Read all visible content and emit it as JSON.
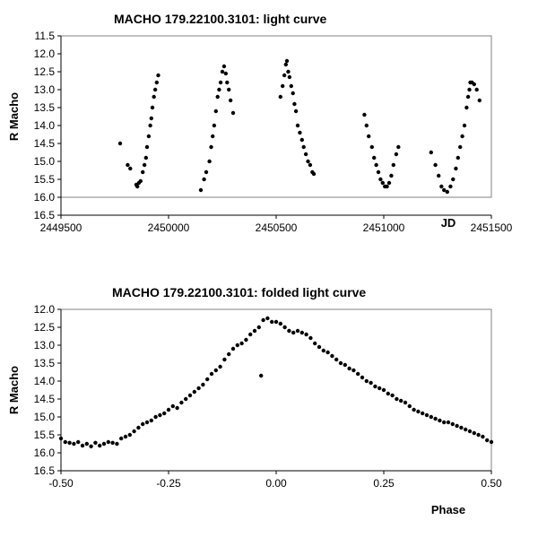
{
  "chart_data": [
    {
      "type": "scatter",
      "title": "MACHO 179.22100.3101: light curve",
      "xlabel": "JD",
      "ylabel": "R Macho",
      "xlim": [
        2449500,
        2451500
      ],
      "ylim": [
        11.5,
        16.0
      ],
      "y_inverted": true,
      "xticks": [
        2449500,
        2450000,
        2450500,
        2451000,
        2451500
      ],
      "xtick_labels": [
        "2449500",
        "2450000",
        "2450500",
        "2451000",
        "2451500"
      ],
      "yticks": [
        11.5,
        12.0,
        12.5,
        13.0,
        13.5,
        14.0,
        14.5,
        15.0,
        15.5,
        16.0,
        16.5
      ],
      "ytick_labels": [
        "11.5",
        "12.0",
        "12.5",
        "13.0",
        "13.5",
        "14.0",
        "14.5",
        "15.0",
        "15.5",
        "16.0",
        "16.5"
      ],
      "grid": false,
      "marker_color": "#000000",
      "series": [
        {
          "segments": [
            [
              [
                2449775,
                14.5
              ],
              [
                2449810,
                15.1
              ],
              [
                2449822,
                15.2
              ],
              [
                2449850,
                15.65
              ],
              [
                2449855,
                15.7
              ],
              [
                2449862,
                15.6
              ],
              [
                2449870,
                15.55
              ],
              [
                2449880,
                15.3
              ],
              [
                2449888,
                15.1
              ],
              [
                2449895,
                14.9
              ],
              [
                2449900,
                14.6
              ],
              [
                2449908,
                14.3
              ],
              [
                2449915,
                14.0
              ],
              [
                2449920,
                13.8
              ],
              [
                2449925,
                13.5
              ],
              [
                2449932,
                13.2
              ],
              [
                2449938,
                13.0
              ],
              [
                2449945,
                12.8
              ],
              [
                2449952,
                12.6
              ]
            ],
            [
              [
                2450150,
                15.8
              ],
              [
                2450165,
                15.5
              ],
              [
                2450175,
                15.3
              ],
              [
                2450190,
                15.0
              ],
              [
                2450198,
                14.6
              ],
              [
                2450205,
                14.3
              ],
              [
                2450212,
                14.0
              ],
              [
                2450220,
                13.6
              ],
              [
                2450228,
                13.2
              ],
              [
                2450235,
                13.0
              ],
              [
                2450242,
                12.8
              ],
              [
                2450250,
                12.5
              ],
              [
                2450258,
                12.35
              ],
              [
                2450266,
                12.55
              ],
              [
                2450272,
                12.8
              ],
              [
                2450280,
                13.0
              ],
              [
                2450288,
                13.3
              ],
              [
                2450300,
                13.65
              ]
            ],
            [
              [
                2450520,
                13.2
              ],
              [
                2450530,
                12.9
              ],
              [
                2450538,
                12.6
              ],
              [
                2450545,
                12.3
              ],
              [
                2450550,
                12.2
              ],
              [
                2450556,
                12.5
              ],
              [
                2450562,
                12.65
              ],
              [
                2450570,
                12.9
              ],
              [
                2450578,
                13.1
              ],
              [
                2450585,
                13.4
              ],
              [
                2450592,
                13.6
              ],
              [
                2450600,
                14.0
              ],
              [
                2450610,
                14.2
              ],
              [
                2450620,
                14.4
              ],
              [
                2450628,
                14.6
              ],
              [
                2450638,
                14.8
              ],
              [
                2450648,
                15.0
              ],
              [
                2450658,
                15.1
              ],
              [
                2450668,
                15.3
              ],
              [
                2450675,
                15.35
              ]
            ],
            [
              [
                2450910,
                13.7
              ],
              [
                2450920,
                14.0
              ],
              [
                2450930,
                14.3
              ],
              [
                2450945,
                14.6
              ],
              [
                2450955,
                14.9
              ],
              [
                2450965,
                15.1
              ],
              [
                2450975,
                15.3
              ],
              [
                2450985,
                15.5
              ],
              [
                2450995,
                15.6
              ],
              [
                2451005,
                15.7
              ],
              [
                2451015,
                15.7
              ],
              [
                2451025,
                15.6
              ],
              [
                2451035,
                15.4
              ],
              [
                2451045,
                15.1
              ],
              [
                2451058,
                14.8
              ],
              [
                2451068,
                14.6
              ]
            ],
            [
              [
                2451220,
                14.75
              ],
              [
                2451240,
                15.1
              ],
              [
                2451255,
                15.4
              ],
              [
                2451268,
                15.7
              ],
              [
                2451280,
                15.8
              ],
              [
                2451295,
                15.85
              ],
              [
                2451310,
                15.7
              ],
              [
                2451322,
                15.5
              ],
              [
                2451335,
                15.2
              ],
              [
                2451345,
                14.9
              ],
              [
                2451355,
                14.6
              ],
              [
                2451365,
                14.3
              ],
              [
                2451375,
                14.0
              ],
              [
                2451385,
                13.5
              ],
              [
                2451392,
                13.2
              ],
              [
                2451398,
                13.0
              ],
              [
                2451402,
                12.8
              ],
              [
                2451410,
                12.8
              ],
              [
                2451420,
                12.85
              ],
              [
                2451432,
                13.0
              ],
              [
                2451445,
                13.3
              ]
            ]
          ]
        }
      ]
    },
    {
      "type": "scatter",
      "title": "MACHO 179.22100.3101: folded light curve",
      "xlabel": "Phase",
      "ylabel": "R Macho",
      "xlim": [
        -0.5,
        0.5
      ],
      "ylim": [
        12.0,
        16.5
      ],
      "y_inverted": true,
      "xticks": [
        -0.5,
        -0.25,
        0.0,
        0.25,
        0.5
      ],
      "xtick_labels": [
        "-0.50",
        "-0.25",
        "0.00",
        "0.25",
        "0.50"
      ],
      "yticks": [
        12.0,
        12.5,
        13.0,
        13.5,
        14.0,
        14.5,
        15.0,
        15.5,
        16.0,
        16.5
      ],
      "ytick_labels": [
        "12.0",
        "12.5",
        "13.0",
        "13.5",
        "14.0",
        "14.5",
        "15.0",
        "15.5",
        "16.0",
        "16.5"
      ],
      "grid": false,
      "marker_color": "#000000",
      "series": [
        {
          "points": [
            [
              -0.5,
              15.6
            ],
            [
              -0.49,
              15.7
            ],
            [
              -0.48,
              15.72
            ],
            [
              -0.47,
              15.75
            ],
            [
              -0.46,
              15.7
            ],
            [
              -0.45,
              15.8
            ],
            [
              -0.44,
              15.75
            ],
            [
              -0.43,
              15.82
            ],
            [
              -0.42,
              15.72
            ],
            [
              -0.41,
              15.8
            ],
            [
              -0.4,
              15.75
            ],
            [
              -0.39,
              15.7
            ],
            [
              -0.38,
              15.72
            ],
            [
              -0.37,
              15.75
            ],
            [
              -0.36,
              15.6
            ],
            [
              -0.35,
              15.55
            ],
            [
              -0.34,
              15.5
            ],
            [
              -0.33,
              15.4
            ],
            [
              -0.32,
              15.3
            ],
            [
              -0.31,
              15.2
            ],
            [
              -0.3,
              15.15
            ],
            [
              -0.29,
              15.1
            ],
            [
              -0.28,
              15.0
            ],
            [
              -0.27,
              14.95
            ],
            [
              -0.26,
              14.9
            ],
            [
              -0.25,
              14.8
            ],
            [
              -0.24,
              14.7
            ],
            [
              -0.23,
              14.75
            ],
            [
              -0.22,
              14.6
            ],
            [
              -0.21,
              14.5
            ],
            [
              -0.2,
              14.4
            ],
            [
              -0.19,
              14.3
            ],
            [
              -0.18,
              14.2
            ],
            [
              -0.17,
              14.1
            ],
            [
              -0.16,
              13.95
            ],
            [
              -0.15,
              13.8
            ],
            [
              -0.14,
              13.7
            ],
            [
              -0.13,
              13.6
            ],
            [
              -0.12,
              13.4
            ],
            [
              -0.11,
              13.25
            ],
            [
              -0.1,
              13.1
            ],
            [
              -0.09,
              13.0
            ],
            [
              -0.08,
              12.95
            ],
            [
              -0.07,
              12.85
            ],
            [
              -0.06,
              12.7
            ],
            [
              -0.05,
              12.6
            ],
            [
              -0.04,
              12.5
            ],
            [
              -0.035,
              13.85
            ],
            [
              -0.03,
              12.3
            ],
            [
              -0.02,
              12.25
            ],
            [
              -0.01,
              12.35
            ],
            [
              0.0,
              12.35
            ],
            [
              0.01,
              12.4
            ],
            [
              0.02,
              12.5
            ],
            [
              0.03,
              12.6
            ],
            [
              0.04,
              12.65
            ],
            [
              0.05,
              12.6
            ],
            [
              0.06,
              12.65
            ],
            [
              0.07,
              12.7
            ],
            [
              0.08,
              12.8
            ],
            [
              0.09,
              12.95
            ],
            [
              0.1,
              13.05
            ],
            [
              0.11,
              13.15
            ],
            [
              0.12,
              13.2
            ],
            [
              0.13,
              13.3
            ],
            [
              0.14,
              13.4
            ],
            [
              0.15,
              13.5
            ],
            [
              0.16,
              13.55
            ],
            [
              0.17,
              13.65
            ],
            [
              0.18,
              13.7
            ],
            [
              0.19,
              13.8
            ],
            [
              0.2,
              13.9
            ],
            [
              0.21,
              14.0
            ],
            [
              0.22,
              14.05
            ],
            [
              0.23,
              14.15
            ],
            [
              0.24,
              14.2
            ],
            [
              0.25,
              14.25
            ],
            [
              0.26,
              14.35
            ],
            [
              0.27,
              14.4
            ],
            [
              0.28,
              14.5
            ],
            [
              0.29,
              14.55
            ],
            [
              0.3,
              14.6
            ],
            [
              0.31,
              14.7
            ],
            [
              0.32,
              14.8
            ],
            [
              0.33,
              14.85
            ],
            [
              0.34,
              14.9
            ],
            [
              0.35,
              14.95
            ],
            [
              0.36,
              15.0
            ],
            [
              0.37,
              15.05
            ],
            [
              0.38,
              15.1
            ],
            [
              0.39,
              15.15
            ],
            [
              0.4,
              15.15
            ],
            [
              0.41,
              15.2
            ],
            [
              0.42,
              15.25
            ],
            [
              0.43,
              15.3
            ],
            [
              0.44,
              15.35
            ],
            [
              0.45,
              15.4
            ],
            [
              0.46,
              15.45
            ],
            [
              0.47,
              15.5
            ],
            [
              0.48,
              15.55
            ],
            [
              0.49,
              15.65
            ],
            [
              0.5,
              15.7
            ]
          ]
        }
      ]
    }
  ]
}
